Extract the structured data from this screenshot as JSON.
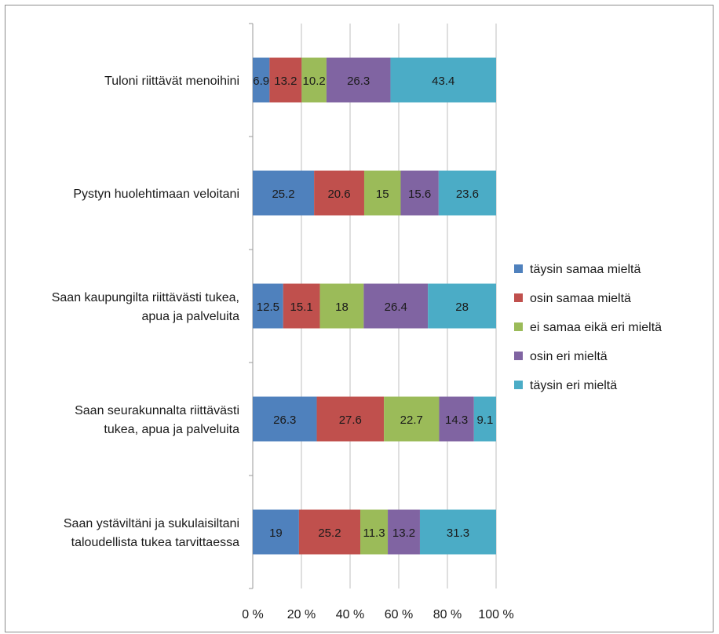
{
  "chart_data": {
    "type": "bar",
    "orientation": "horizontal",
    "stacked": "percent",
    "categories": [
      "Tuloni riittävät menoihini",
      "Pystyn huolehtimaan veloitani",
      "Saan kaupungilta riittävästi tukea, apua ja palveluita",
      "Saan seurakunnalta riittävästi tukea, apua ja palveluita",
      "Saan ystäviltäni ja sukulaisiltani taloudellista tukea tarvittaessa"
    ],
    "category_lines": [
      [
        "Tuloni riittävät menoihini"
      ],
      [
        "Pystyn huolehtimaan veloitani"
      ],
      [
        "Saan kaupungilta riittävästi tukea,",
        "apua ja palveluita"
      ],
      [
        "Saan seurakunnalta riittävästi",
        "tukea, apua ja palveluita"
      ],
      [
        "Saan ystäviltäni ja sukulaisiltani",
        "taloudellista tukea tarvittaessa"
      ]
    ],
    "series": [
      {
        "name": "täysin samaa mieltä",
        "color": "#4f81bd",
        "values": [
          6.9,
          25.2,
          12.5,
          26.3,
          19
        ]
      },
      {
        "name": "osin samaa mieltä",
        "color": "#c0504d",
        "values": [
          13.2,
          20.6,
          15.1,
          27.6,
          25.2
        ]
      },
      {
        "name": "ei samaa eikä eri mieltä",
        "color": "#9bbb59",
        "values": [
          10.2,
          15,
          18,
          22.7,
          11.3
        ]
      },
      {
        "name": "osin eri mieltä",
        "color": "#8064a2",
        "values": [
          26.3,
          15.6,
          26.4,
          14.3,
          13.2
        ]
      },
      {
        "name": "täysin eri mieltä",
        "color": "#4bacc6",
        "values": [
          43.4,
          23.6,
          28,
          9.1,
          31.3
        ]
      }
    ],
    "x_ticks": [
      "0 %",
      "20 %",
      "40 %",
      "60 %",
      "80 %",
      "100 %"
    ],
    "xlim": [
      0,
      100
    ],
    "grid": true,
    "legend_position": "right"
  }
}
